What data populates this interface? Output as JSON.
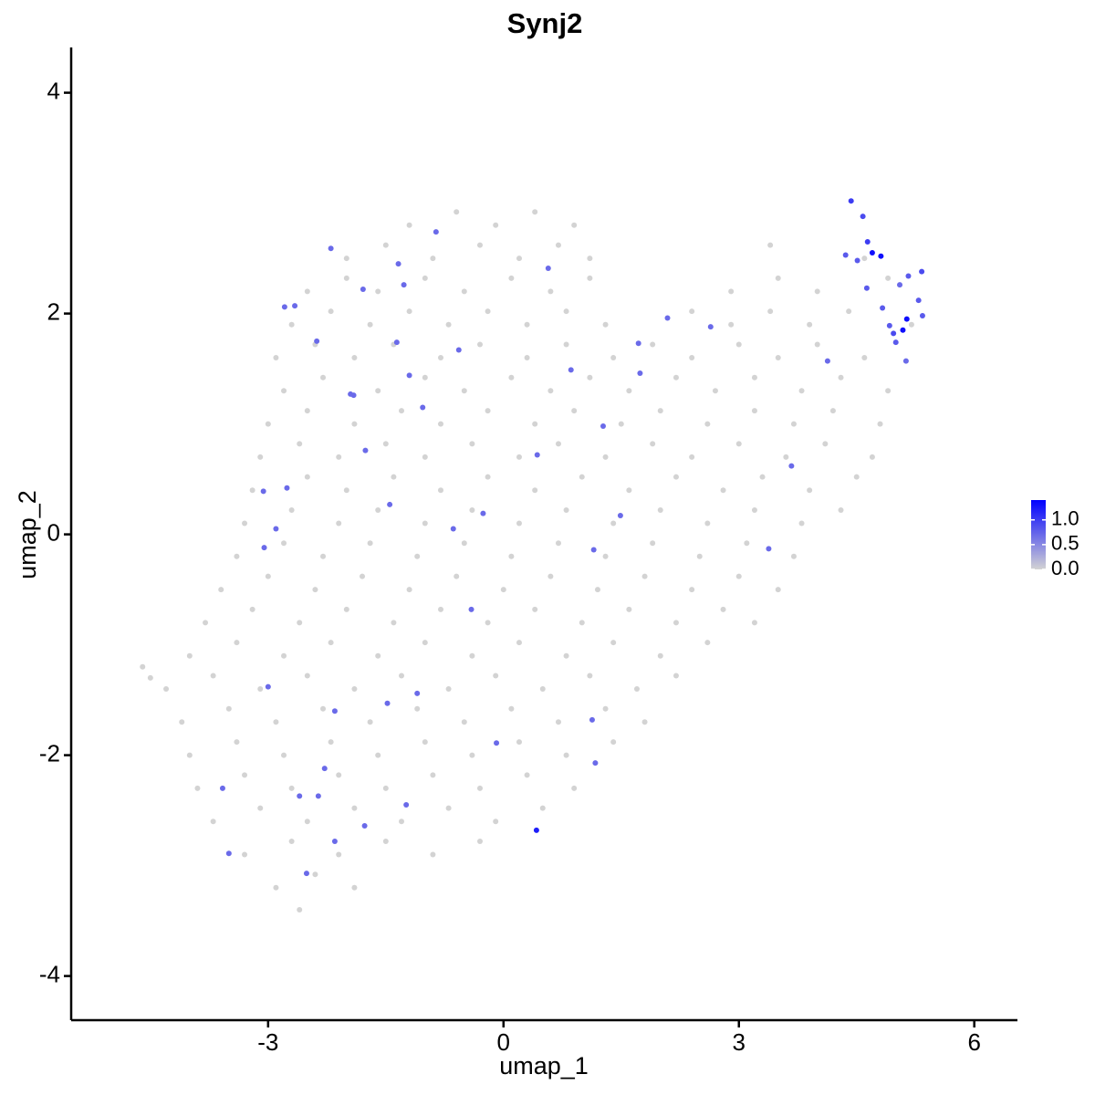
{
  "chart_data": {
    "type": "scatter",
    "title": "Synj2",
    "x_label": "umap_1",
    "y_label": "umap_2",
    "xlim": [
      -5.51,
      6.55
    ],
    "ylim": [
      -4.4,
      4.41
    ],
    "xticks": [
      -3,
      0,
      3,
      6
    ],
    "yticks": [
      -4,
      -2,
      0,
      2,
      4
    ],
    "grid": false,
    "color_scale": {
      "low": "#d3d3d3",
      "high": "#0000ff",
      "lim": [
        0,
        1.4
      ],
      "ticks": [
        {
          "value": 0,
          "label": "0.0"
        },
        {
          "value": 0.5,
          "label": "0.5"
        },
        {
          "value": 1,
          "label": "1.0"
        }
      ]
    },
    "x": [
      -1.2,
      -0.6,
      -0.1,
      0.4,
      0.9,
      -2.0,
      -1.5,
      -0.9,
      -0.3,
      0.2,
      0.7,
      1.1,
      3.4,
      4.6,
      -2.5,
      -2.0,
      -1.6,
      -1.0,
      -0.5,
      0.1,
      0.6,
      1.1,
      2.9,
      3.5,
      4.0,
      4.9,
      -2.7,
      -2.2,
      -1.7,
      -1.2,
      -0.7,
      -0.2,
      0.3,
      0.8,
      1.3,
      2.4,
      2.9,
      3.4,
      3.9,
      4.4,
      5.2,
      -2.9,
      -2.4,
      -1.9,
      -1.4,
      -0.8,
      -0.3,
      0.3,
      0.8,
      1.4,
      1.9,
      2.4,
      3.0,
      3.5,
      4.0,
      4.6,
      -2.8,
      -2.3,
      -1.6,
      -1.0,
      -0.5,
      0.1,
      0.6,
      1.1,
      1.6,
      2.2,
      2.7,
      3.2,
      3.8,
      4.3,
      4.9,
      -3.0,
      -2.5,
      -1.9,
      -1.3,
      -0.8,
      -0.2,
      0.4,
      0.9,
      1.5,
      2.0,
      2.6,
      3.2,
      3.7,
      4.2,
      4.8,
      -3.1,
      -2.6,
      -2.1,
      -1.5,
      -1.0,
      -0.4,
      0.2,
      0.7,
      1.3,
      1.9,
      2.4,
      3.0,
      3.6,
      4.1,
      4.7,
      -3.2,
      -2.5,
      -2.0,
      -1.4,
      -0.8,
      -0.2,
      0.4,
      1.0,
      1.6,
      2.2,
      2.8,
      3.3,
      3.9,
      4.5,
      -3.3,
      -2.7,
      -2.1,
      -1.6,
      -1.0,
      -0.4,
      0.2,
      0.8,
      1.4,
      2.0,
      2.6,
      3.2,
      3.8,
      4.3,
      -3.4,
      -2.8,
      -2.3,
      -1.7,
      -1.1,
      -0.5,
      0.1,
      0.7,
      1.3,
      1.9,
      2.5,
      3.1,
      3.7,
      -3.6,
      -3.0,
      -2.4,
      -1.8,
      -1.2,
      -0.6,
      0.0,
      0.6,
      1.2,
      1.8,
      2.4,
      3.0,
      3.5,
      -3.8,
      -3.2,
      -2.6,
      -2.0,
      -1.4,
      -0.8,
      -0.2,
      0.4,
      1.0,
      1.6,
      2.2,
      2.8,
      3.2,
      -4.0,
      -3.4,
      -2.8,
      -2.2,
      -1.6,
      -1.0,
      -0.4,
      0.2,
      0.8,
      1.4,
      2.0,
      2.6,
      -4.3,
      -3.7,
      -3.1,
      -2.5,
      -1.9,
      -1.3,
      -0.7,
      -0.1,
      0.5,
      1.1,
      1.7,
      2.2,
      -4.1,
      -3.5,
      -2.9,
      -2.3,
      -1.7,
      -1.1,
      -0.5,
      0.1,
      0.7,
      1.3,
      1.8,
      -4.0,
      -3.4,
      -2.8,
      -2.2,
      -1.6,
      -1.0,
      -0.4,
      0.2,
      0.8,
      1.4,
      -3.9,
      -3.3,
      -2.7,
      -2.1,
      -1.5,
      -0.9,
      -0.3,
      0.3,
      0.9,
      -3.7,
      -3.1,
      -2.5,
      -1.9,
      -1.3,
      -0.7,
      -0.1,
      0.5,
      -3.3,
      -2.7,
      -2.1,
      -1.5,
      -0.9,
      -0.3,
      -2.9,
      -2.4,
      -1.9,
      -2.6,
      -4.6,
      -4.5,
      4.43,
      4.58,
      4.64,
      4.7,
      4.81,
      4.36,
      4.51,
      4.63,
      5.05,
      5.16,
      5.29,
      5.33,
      4.83,
      4.92,
      4.97,
      5.09,
      5.14,
      5.13,
      5.0,
      5.34,
      -2.2,
      -2.79,
      -2.66,
      -1.79,
      -1.27,
      -1.34,
      -0.86,
      0.57,
      -2.38,
      -1.36,
      -0.57,
      -1.95,
      -1.91,
      -1.2,
      -1.03,
      -3.06,
      -2.76,
      -2.9,
      -3.05,
      -1.76,
      -1.45,
      -0.64,
      -0.26,
      0.43,
      0.86,
      1.27,
      1.72,
      1.74,
      1.49,
      1.15,
      2.09,
      2.64,
      3.67,
      3.38,
      4.13,
      -3.0,
      -2.15,
      -1.48,
      -1.1,
      -0.41,
      -0.09,
      1.13,
      1.17,
      -2.28,
      -2.6,
      -2.36,
      -1.24,
      -3.58,
      -3.5,
      -2.15,
      -1.77,
      -2.51,
      0.42
    ],
    "y": [
      2.8,
      2.92,
      2.8,
      2.92,
      2.8,
      2.5,
      2.62,
      2.5,
      2.62,
      2.5,
      2.62,
      2.5,
      2.62,
      2.5,
      2.2,
      2.32,
      2.2,
      2.32,
      2.2,
      2.32,
      2.2,
      2.32,
      2.2,
      2.32,
      2.2,
      2.32,
      1.9,
      2.02,
      1.9,
      2.02,
      1.9,
      2.02,
      1.9,
      2.02,
      1.9,
      2.02,
      1.9,
      2.02,
      1.9,
      2.02,
      1.9,
      1.6,
      1.72,
      1.6,
      1.72,
      1.6,
      1.72,
      1.6,
      1.72,
      1.6,
      1.72,
      1.6,
      1.72,
      1.6,
      1.72,
      1.6,
      1.3,
      1.42,
      1.3,
      1.42,
      1.3,
      1.42,
      1.3,
      1.42,
      1.3,
      1.42,
      1.3,
      1.42,
      1.3,
      1.42,
      1.3,
      1.0,
      1.12,
      1.0,
      1.12,
      1.0,
      1.12,
      1.0,
      1.12,
      1.0,
      1.12,
      1.0,
      1.12,
      1.0,
      1.12,
      1.0,
      0.7,
      0.82,
      0.7,
      0.82,
      0.7,
      0.82,
      0.7,
      0.82,
      0.7,
      0.82,
      0.7,
      0.82,
      0.7,
      0.82,
      0.7,
      0.4,
      0.52,
      0.4,
      0.52,
      0.4,
      0.52,
      0.4,
      0.52,
      0.4,
      0.52,
      0.4,
      0.52,
      0.4,
      0.52,
      0.1,
      0.22,
      0.1,
      0.22,
      0.1,
      0.22,
      0.1,
      0.22,
      0.1,
      0.22,
      0.1,
      0.22,
      0.1,
      0.22,
      -0.2,
      -0.08,
      -0.2,
      -0.08,
      -0.2,
      -0.08,
      -0.2,
      -0.08,
      -0.2,
      -0.08,
      -0.2,
      -0.08,
      -0.2,
      -0.5,
      -0.38,
      -0.5,
      -0.38,
      -0.5,
      -0.38,
      -0.5,
      -0.38,
      -0.5,
      -0.38,
      -0.5,
      -0.38,
      -0.5,
      -0.8,
      -0.68,
      -0.8,
      -0.68,
      -0.8,
      -0.68,
      -0.8,
      -0.68,
      -0.8,
      -0.68,
      -0.8,
      -0.68,
      -0.8,
      -1.1,
      -0.98,
      -1.1,
      -0.98,
      -1.1,
      -0.98,
      -1.1,
      -0.98,
      -1.1,
      -0.98,
      -1.1,
      -0.98,
      -1.4,
      -1.28,
      -1.4,
      -1.28,
      -1.4,
      -1.28,
      -1.4,
      -1.28,
      -1.4,
      -1.28,
      -1.4,
      -1.28,
      -1.7,
      -1.58,
      -1.7,
      -1.58,
      -1.7,
      -1.58,
      -1.7,
      -1.58,
      -1.7,
      -1.58,
      -1.7,
      -2.0,
      -1.88,
      -2.0,
      -1.88,
      -2.0,
      -1.88,
      -2.0,
      -1.88,
      -2.0,
      -1.88,
      -2.3,
      -2.18,
      -2.3,
      -2.18,
      -2.3,
      -2.18,
      -2.3,
      -2.18,
      -2.3,
      -2.6,
      -2.48,
      -2.6,
      -2.48,
      -2.6,
      -2.48,
      -2.6,
      -2.48,
      -2.9,
      -2.78,
      -2.9,
      -2.78,
      -2.9,
      -2.78,
      -3.2,
      -3.08,
      -3.2,
      -3.4,
      -1.2,
      -1.3,
      3.02,
      2.88,
      2.65,
      2.55,
      2.52,
      2.53,
      2.48,
      2.23,
      2.26,
      2.34,
      2.12,
      2.38,
      2.05,
      1.89,
      1.82,
      1.85,
      1.95,
      1.57,
      1.74,
      1.98,
      2.59,
      2.06,
      2.07,
      2.22,
      2.26,
      2.45,
      2.74,
      2.41,
      1.75,
      1.74,
      1.67,
      1.27,
      1.26,
      1.44,
      1.15,
      0.39,
      0.42,
      0.05,
      -0.12,
      0.76,
      0.27,
      0.05,
      0.19,
      0.72,
      1.49,
      0.98,
      1.73,
      1.46,
      0.17,
      -0.14,
      1.96,
      1.88,
      0.62,
      -0.13,
      1.57,
      -1.38,
      -1.6,
      -1.53,
      -1.44,
      -0.68,
      -1.89,
      -1.68,
      -2.07,
      -2.12,
      -2.37,
      -2.37,
      -2.45,
      -2.3,
      -2.89,
      -2.78,
      -2.64,
      -3.07,
      -2.68
    ],
    "values": [
      0,
      0,
      0,
      0,
      0,
      0,
      0,
      0,
      0,
      0,
      0,
      0,
      0,
      0,
      0,
      0,
      0,
      0,
      0,
      0,
      0,
      0,
      0,
      0,
      0,
      0,
      0,
      0,
      0,
      0,
      0,
      0,
      0,
      0,
      0,
      0,
      0,
      0,
      0,
      0,
      0,
      0,
      0,
      0,
      0,
      0,
      0,
      0,
      0,
      0,
      0,
      0,
      0,
      0,
      0,
      0,
      0,
      0,
      0,
      0,
      0,
      0,
      0,
      0,
      0,
      0,
      0,
      0,
      0,
      0,
      0,
      0,
      0,
      0,
      0,
      0,
      0,
      0,
      0,
      0,
      0,
      0,
      0,
      0,
      0,
      0,
      0,
      0,
      0,
      0,
      0,
      0,
      0,
      0,
      0,
      0,
      0,
      0,
      0,
      0,
      0,
      0,
      0,
      0,
      0,
      0,
      0,
      0,
      0,
      0,
      0,
      0,
      0,
      0,
      0,
      0,
      0,
      0,
      0,
      0,
      0,
      0,
      0,
      0,
      0,
      0,
      0,
      0,
      0,
      0,
      0,
      0,
      0,
      0,
      0,
      0,
      0,
      0,
      0,
      0,
      0,
      0,
      0,
      0,
      0,
      0,
      0,
      0,
      0,
      0,
      0,
      0,
      0,
      0,
      0,
      0,
      0,
      0,
      0,
      0,
      0,
      0,
      0,
      0,
      0,
      0,
      0,
      0,
      0,
      0,
      0,
      0,
      0,
      0,
      0,
      0,
      0,
      0,
      0,
      0,
      0,
      0,
      0,
      0,
      0,
      0,
      0,
      0,
      0,
      0,
      0,
      0,
      0,
      0,
      0,
      0,
      0,
      0,
      0,
      0,
      0,
      0,
      0,
      0,
      0,
      0,
      0,
      0,
      0,
      0,
      0,
      0,
      0,
      0,
      0,
      0,
      0,
      0,
      0,
      0,
      0,
      0,
      0,
      0,
      0,
      0,
      0,
      0,
      0,
      0,
      0,
      0,
      0,
      0,
      0,
      0,
      0,
      0,
      0,
      0,
      0,
      0,
      1.0,
      0.9,
      1.0,
      1.3,
      1.3,
      0.8,
      0.8,
      0.8,
      0.7,
      0.8,
      0.8,
      0.9,
      0.8,
      0.8,
      0.9,
      1.3,
      1.3,
      0.7,
      0.8,
      0.8,
      0.7,
      0.7,
      0.7,
      0.7,
      0.7,
      0.7,
      0.7,
      0.7,
      0.7,
      0.7,
      0.7,
      0.7,
      0.7,
      0.7,
      0.7,
      0.7,
      0.7,
      0.7,
      0.7,
      0.7,
      0.7,
      0.7,
      0.7,
      0.7,
      0.7,
      0.7,
      0.7,
      0.7,
      0.7,
      0.7,
      0.7,
      0.7,
      0.7,
      0.7,
      0.7,
      0.7,
      0.7,
      0.7,
      0.7,
      0.7,
      0.7,
      0.7,
      0.7,
      0.7,
      0.7,
      0.7,
      0.7,
      0.7,
      0.7,
      0.7,
      0.7,
      0.7,
      1.2
    ]
  }
}
